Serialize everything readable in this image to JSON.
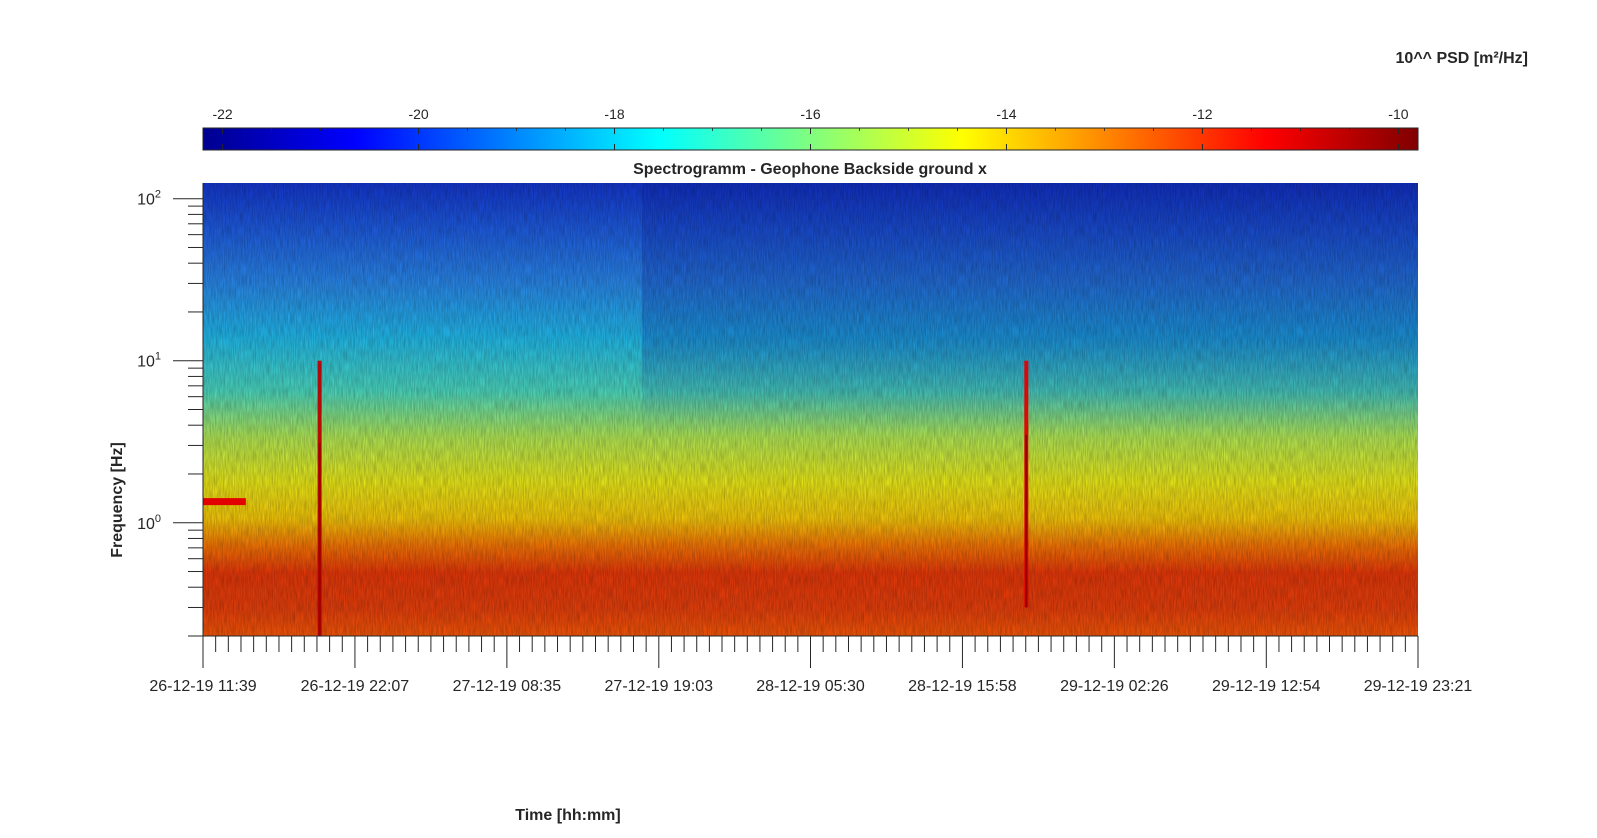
{
  "chart_data": {
    "type": "heatmap",
    "title": "Spectrogramm - Geophone Backside ground x",
    "xlabel": "Time [hh:mm]",
    "ylabel": "Frequency [Hz]",
    "colorbar": {
      "label": "10^^ PSD [m²/Hz]",
      "ticks": [
        -22,
        -20,
        -18,
        -16,
        -14,
        -12,
        -10
      ],
      "range": [
        -22.2,
        -9.8
      ],
      "colormap": "jet",
      "position": "top"
    },
    "x_ticks": [
      "26-12-19 11:39",
      "26-12-19 22:07",
      "27-12-19 08:35",
      "27-12-19 19:03",
      "28-12-19 05:30",
      "28-12-19 15:58",
      "29-12-19 02:26",
      "29-12-19 12:54",
      "29-12-19 23:21"
    ],
    "x_range": [
      "26-12-19 11:39",
      "29-12-19 23:21"
    ],
    "y_scale": "log",
    "y_range": [
      0.2,
      125
    ],
    "y_ticks": [
      {
        "base": "10",
        "exp": "0",
        "value": 1
      },
      {
        "base": "10",
        "exp": "1",
        "value": 10
      },
      {
        "base": "10",
        "exp": "2",
        "value": 100
      }
    ],
    "approx_psd_log10_by_frequency": [
      {
        "freq_hz": 0.25,
        "psd_log10": -11.5
      },
      {
        "freq_hz": 0.5,
        "psd_log10": -11.8
      },
      {
        "freq_hz": 0.8,
        "psd_log10": -13.0
      },
      {
        "freq_hz": 1.5,
        "psd_log10": -14.5
      },
      {
        "freq_hz": 3,
        "psd_log10": -15.2
      },
      {
        "freq_hz": 6,
        "psd_log10": -16.5
      },
      {
        "freq_hz": 15,
        "psd_log10": -17.2
      },
      {
        "freq_hz": 40,
        "psd_log10": -18.5
      },
      {
        "freq_hz": 100,
        "psd_log10": -20.5
      }
    ],
    "events": [
      {
        "time": "26-12-19 19:41",
        "freq_range_hz": [
          0.2,
          10
        ],
        "psd_log10": -10.5
      },
      {
        "time": "28-12-19 20:22",
        "freq_range_hz": [
          0.3,
          10
        ],
        "psd_log10": -11.0
      }
    ],
    "bands": [
      {
        "time_range": [
          "26-12-19 11:39",
          "26-12-19 14:36"
        ],
        "freq_hz": 1.35,
        "psd_log10": -11.0
      }
    ]
  }
}
